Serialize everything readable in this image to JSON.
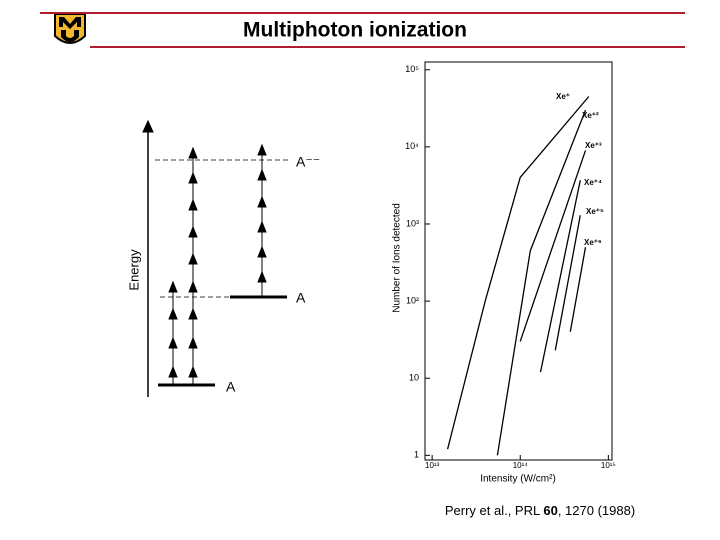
{
  "header": {
    "title": "Multiphoton ionization"
  },
  "diagram": {
    "axis_label": "Energy",
    "levels": [
      "A⁻⁻",
      "A",
      "A"
    ]
  },
  "chart_data": {
    "type": "line",
    "x_label": "Intensity (W/cm²)",
    "y_label": "Number of Ions detected",
    "xlog": true,
    "ylog": true,
    "xlim": [
      8300000000000.0,
      1100000000000000.0
    ],
    "ylim": [
      0.87,
      126000
    ],
    "xticks": [
      {
        "value": 10000000000000.0,
        "label": "10¹³"
      },
      {
        "value": 100000000000000.0,
        "label": "10¹⁴"
      },
      {
        "value": 1000000000000000.0,
        "label": "10¹⁵"
      }
    ],
    "yticks": [
      1,
      10,
      {
        "value": 100,
        "label": "10²"
      },
      {
        "value": 1000,
        "label": "10³"
      },
      {
        "value": 10000,
        "label": "10⁴"
      },
      {
        "value": 100000,
        "label": "10⁵"
      }
    ],
    "series": [
      {
        "name": "Xe⁺",
        "color": "#000000",
        "x": [
          15000000000000.0,
          40000000000000.0,
          100000000000000.0,
          600000000000000.0
        ],
        "values": [
          1.2,
          100,
          4000,
          45000
        ]
      },
      {
        "name": "Xe⁺²",
        "color": "#000000",
        "x": [
          55000000000000.0,
          130000000000000.0,
          550000000000000.0
        ],
        "values": [
          1,
          450,
          30000
        ]
      },
      {
        "name": "Xe⁺³",
        "color": "#000000",
        "x": [
          100000000000000.0,
          550000000000000.0
        ],
        "values": [
          30,
          9000
        ]
      },
      {
        "name": "Xe⁺⁴",
        "color": "#000000",
        "x": [
          170000000000000.0,
          480000000000000.0
        ],
        "values": [
          12,
          3700
        ]
      },
      {
        "name": "Xe⁺⁵",
        "color": "#000000",
        "x": [
          250000000000000.0,
          480000000000000.0
        ],
        "values": [
          23,
          1300
        ]
      },
      {
        "name": "Xe⁺⁶",
        "color": "#000000",
        "x": [
          370000000000000.0,
          550000000000000.0
        ],
        "values": [
          40,
          500
        ]
      }
    ]
  },
  "citation": {
    "before": "Perry et al., PRL ",
    "volume": 60,
    "after": ", 1270 (1988)"
  }
}
